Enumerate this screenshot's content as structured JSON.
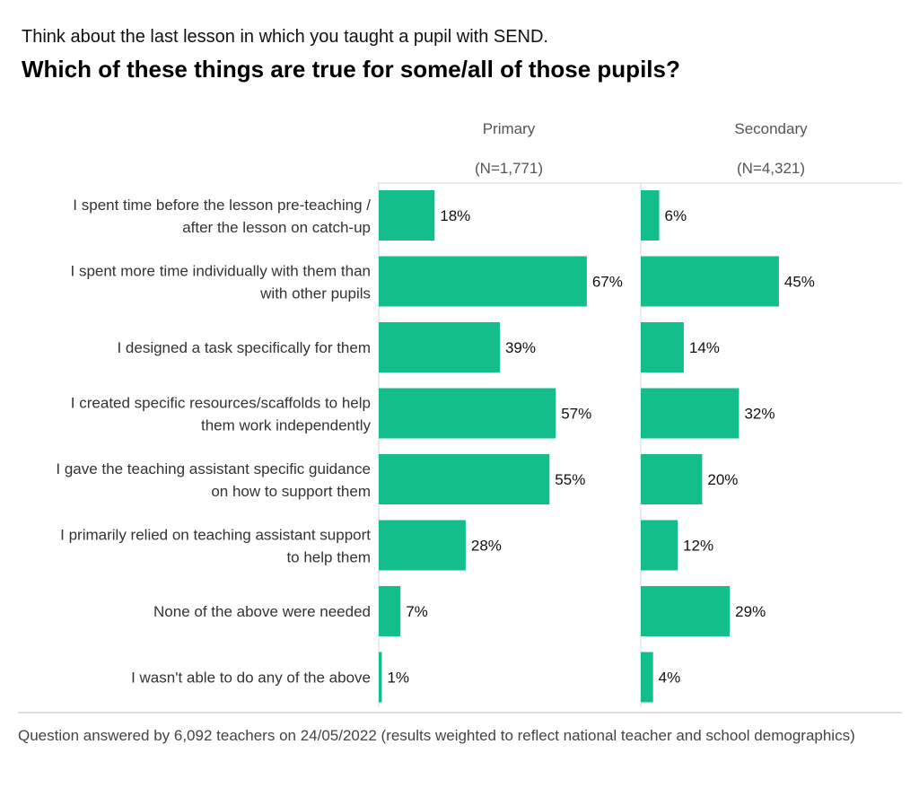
{
  "header": {
    "subtitle": "Think about the last lesson in which you taught a pupil with SEND.",
    "title": "Which of these things are true for some/all of those pupils?"
  },
  "footer": {
    "note": "Question answered by 6,092 teachers on 24/05/2022 (results weighted to reflect national teacher and school demographics)"
  },
  "colors": {
    "bar": "#13bd8c",
    "gridline": "#d9d9d9",
    "separator": "#bbbbbb"
  },
  "chart_data": {
    "type": "bar",
    "orientation": "horizontal",
    "unit": "%",
    "categories": [
      [
        "I spent time before the lesson pre-teaching /",
        "after the lesson on catch-up"
      ],
      [
        "I spent more time individually with them than",
        "with other pupils"
      ],
      [
        "I designed a task specifically for them"
      ],
      [
        "I created specific resources/scaffolds to help",
        "them work independently"
      ],
      [
        "I gave the teaching assistant specific guidance",
        "on how to support them"
      ],
      [
        "I primarily relied on teaching assistant support",
        "to help them"
      ],
      [
        "None of the above were needed"
      ],
      [
        "I wasn't able to do any of the above"
      ]
    ],
    "series": [
      {
        "name": "Primary",
        "n_label": "(N=1,771)",
        "values": [
          18,
          67,
          39,
          57,
          55,
          28,
          7,
          1
        ]
      },
      {
        "name": "Secondary",
        "n_label": "(N=4,321)",
        "values": [
          6,
          45,
          14,
          32,
          20,
          12,
          29,
          4
        ]
      }
    ]
  }
}
